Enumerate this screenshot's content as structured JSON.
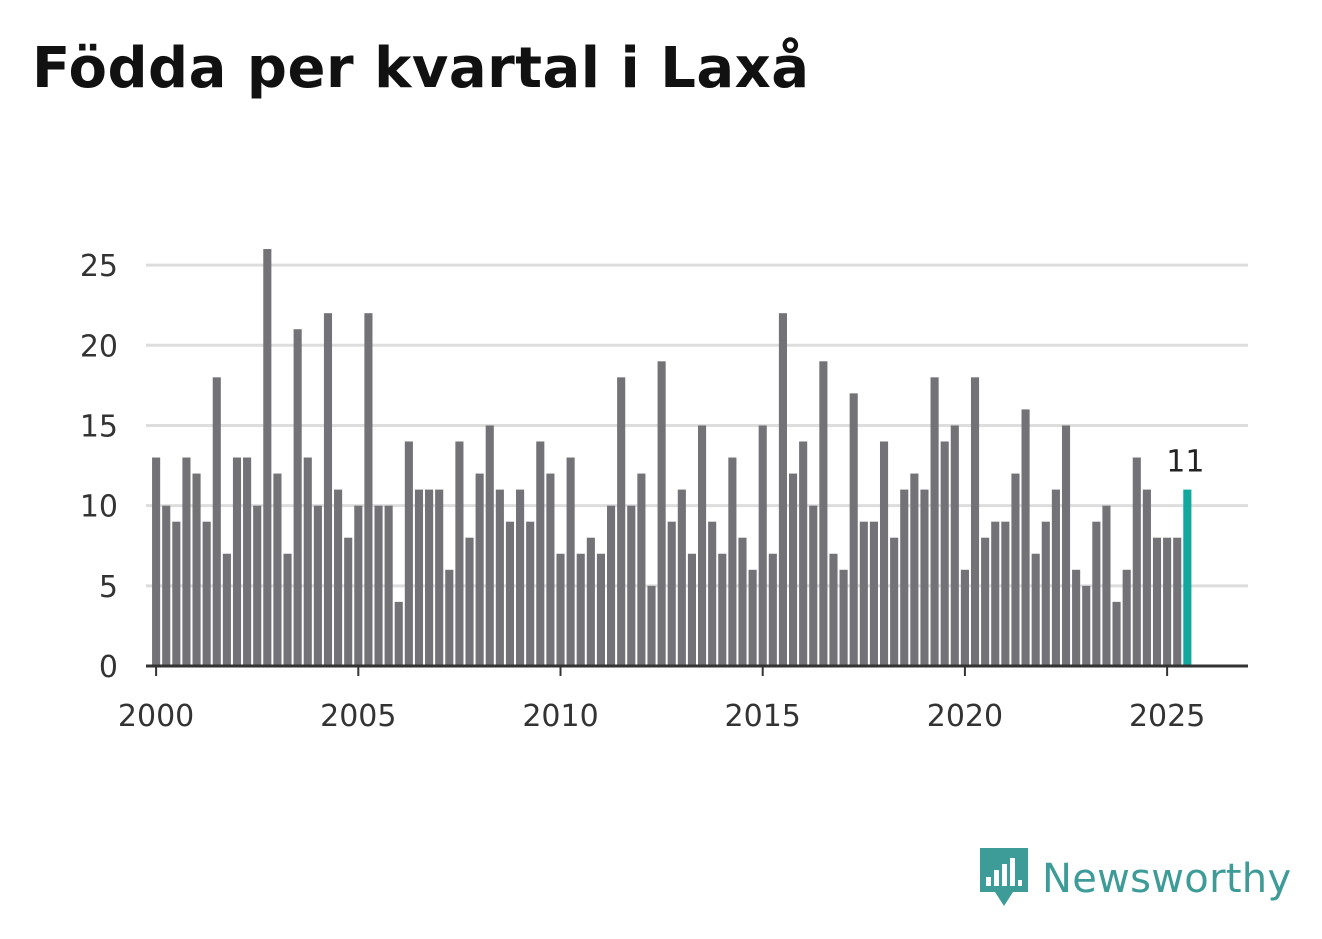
{
  "title": "Födda per kvartal i Laxå",
  "brand": {
    "name": "Newsworthy",
    "icon": "newsworthy-logo-icon",
    "color": "#3d9b98"
  },
  "colors": {
    "bar": "#737277",
    "highlight": "#13a89e",
    "grid": "#dddddd",
    "axis": "#333333"
  },
  "chart_data": {
    "type": "bar",
    "title": "Födda per kvartal i Laxå",
    "xlabel": "",
    "ylabel": "",
    "ylim": [
      0,
      27
    ],
    "yticks": [
      0,
      5,
      10,
      15,
      20,
      25
    ],
    "xlim": [
      1999.75,
      2027.0
    ],
    "xticks": [
      2000,
      2005,
      2010,
      2015,
      2020,
      2025
    ],
    "grid": true,
    "first_quarter": "2000 Q1",
    "values": [
      13,
      10,
      9,
      13,
      12,
      9,
      18,
      7,
      13,
      13,
      10,
      26,
      12,
      7,
      21,
      13,
      10,
      22,
      11,
      8,
      10,
      22,
      10,
      10,
      4,
      14,
      11,
      11,
      11,
      6,
      14,
      8,
      12,
      15,
      11,
      9,
      11,
      9,
      14,
      12,
      7,
      13,
      7,
      8,
      7,
      10,
      18,
      10,
      12,
      5,
      19,
      9,
      11,
      7,
      15,
      9,
      7,
      13,
      8,
      6,
      15,
      7,
      22,
      12,
      14,
      10,
      19,
      7,
      6,
      17,
      9,
      9,
      14,
      8,
      11,
      12,
      11,
      18,
      14,
      15,
      6,
      18,
      8,
      9,
      9,
      12,
      16,
      7,
      9,
      11,
      15,
      6,
      5,
      9,
      10,
      4,
      6,
      13,
      11,
      8,
      8,
      8,
      11
    ],
    "highlight_index": 102,
    "annotation": {
      "index": 102,
      "text": "11"
    }
  }
}
